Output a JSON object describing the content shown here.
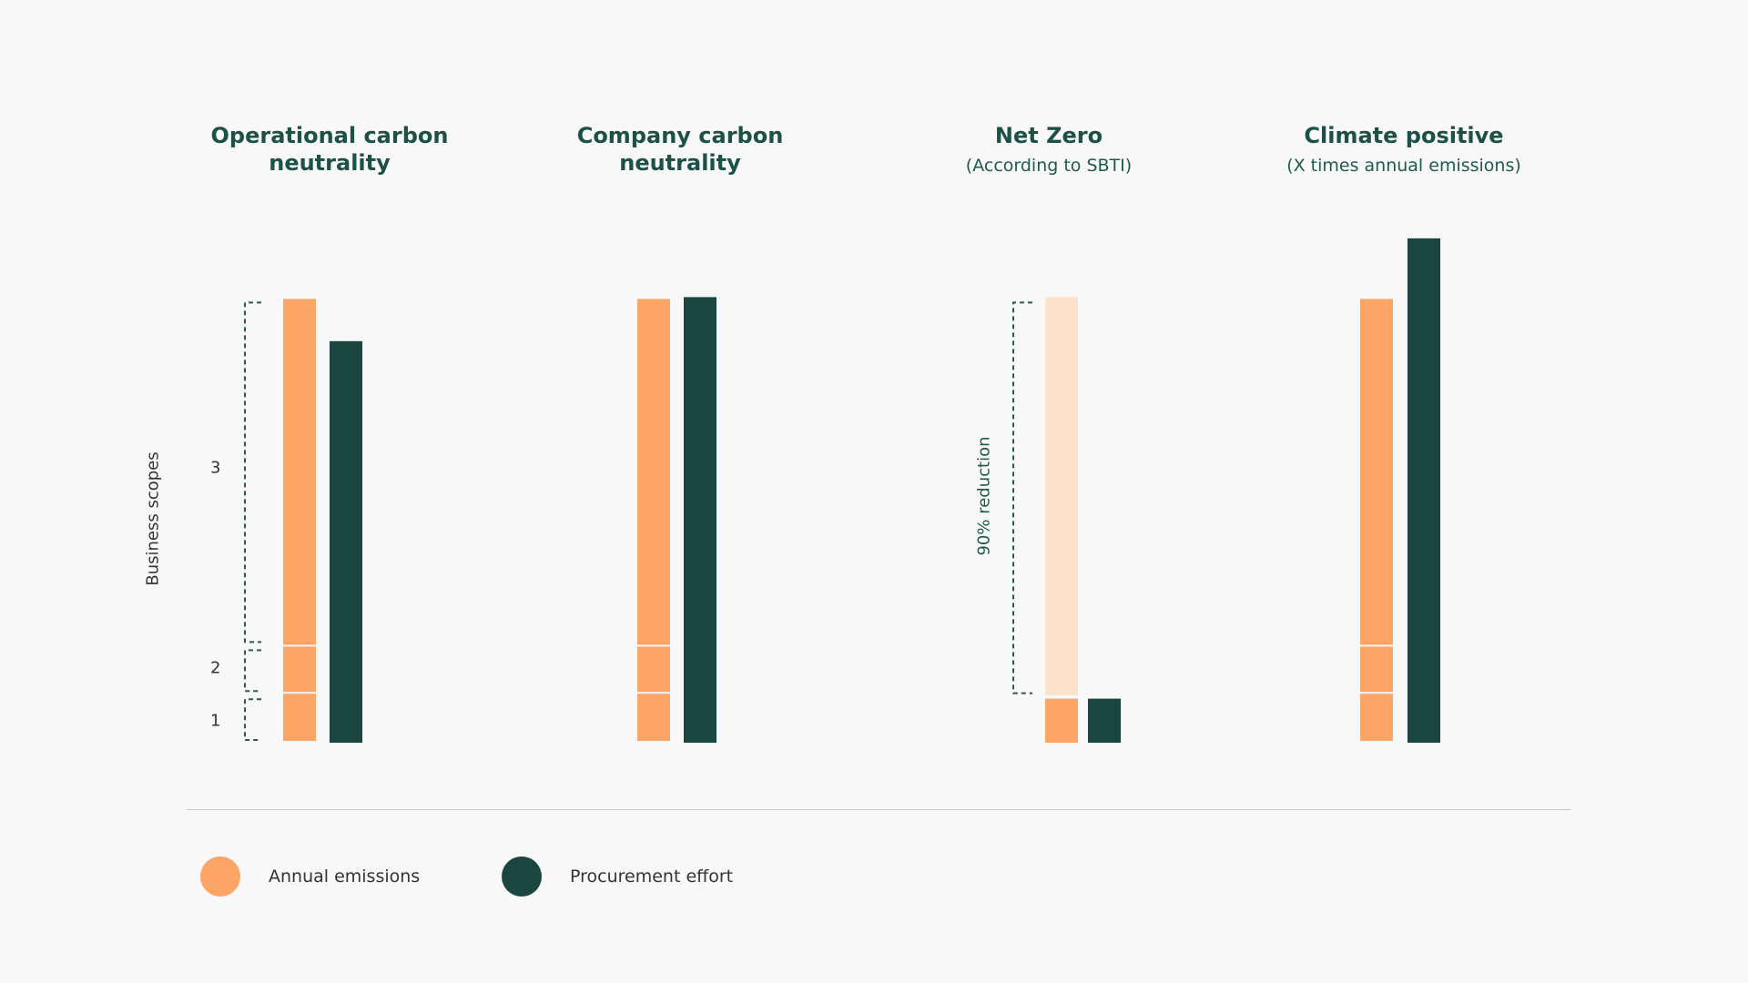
{
  "chart_data": {
    "type": "bar",
    "ylabel": "Business scopes",
    "scope_ticks": [
      "1",
      "2",
      "3"
    ],
    "groups": [
      {
        "title": "Operational carbon\nneutrality",
        "subtitle": "",
        "annual_emissions": {
          "scope1": 1,
          "scope2": 1,
          "scope3": 7.1
        },
        "procurement_effort": 8.2,
        "shows_scope_brackets": true
      },
      {
        "title": "Company carbon\nneutrality",
        "subtitle": "",
        "annual_emissions": {
          "scope1": 1,
          "scope2": 1,
          "scope3": 7.1
        },
        "procurement_effort": 9.1
      },
      {
        "title": "Net Zero",
        "subtitle": "(According to SBTI)",
        "annual_emissions_reduced_share": 0.9,
        "annual_emissions_remaining": 0.9,
        "annual_emissions_original": 9.1,
        "procurement_effort": 0.9,
        "reduction_label": "90% reduction"
      },
      {
        "title": "Climate positive",
        "subtitle": "(X times annual emissions)",
        "annual_emissions": {
          "scope1": 1,
          "scope2": 1,
          "scope3": 7.1
        },
        "procurement_effort": 10.3
      }
    ],
    "legend": [
      {
        "label": "Annual emissions",
        "color": "#fda566"
      },
      {
        "label": "Procurement effort",
        "color": "#1b4640"
      }
    ]
  },
  "colors": {
    "annual_emissions": "#fda566",
    "annual_emissions_reduced": "#fde2cc",
    "procurement_effort": "#1b4640",
    "title": "#1b5147"
  }
}
